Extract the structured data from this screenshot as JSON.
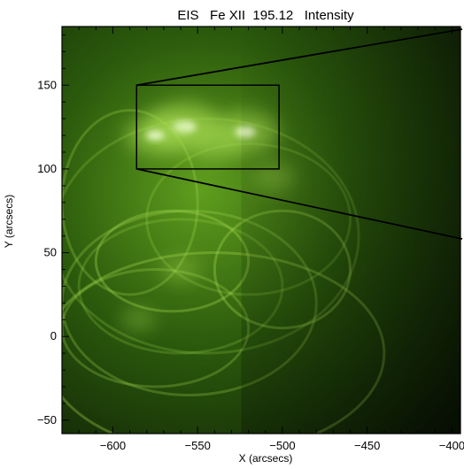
{
  "chart_data": {
    "type": "heatmap",
    "title": "EIS   Fe XII  195.12   Intensity",
    "xlabel": "X (arcsecs)",
    "ylabel": "Y (arcsecs)",
    "xlim": [
      -630,
      -395
    ],
    "ylim": [
      -58,
      185
    ],
    "xticks": [
      -600,
      -550,
      -500,
      -450,
      -400
    ],
    "xtick_labels": [
      "−600",
      "−550",
      "−500",
      "−450",
      "−400"
    ],
    "yticks": [
      -50,
      0,
      50,
      100,
      150
    ],
    "ytick_labels": [
      "−50",
      "0",
      "50",
      "100",
      "150"
    ],
    "grid": false,
    "colormap": [
      "#0c1a05",
      "#2b5a0c",
      "#5f9e1e",
      "#a6d94f",
      "#f0ffd8"
    ],
    "zoom_box": {
      "x0": -586,
      "x1": -502,
      "y0": 100,
      "y1": 150
    },
    "bright_regions": [
      {
        "x": -558,
        "y": 125,
        "intensity": 1.0
      },
      {
        "x": -522,
        "y": 122,
        "intensity": 0.85
      },
      {
        "x": -575,
        "y": 120,
        "intensity": 0.75
      },
      {
        "x": -540,
        "y": 115,
        "intensity": 0.6
      },
      {
        "x": -505,
        "y": 95,
        "intensity": 0.45
      },
      {
        "x": -560,
        "y": 40,
        "intensity": 0.4
      },
      {
        "x": -585,
        "y": 10,
        "intensity": 0.35
      }
    ]
  }
}
